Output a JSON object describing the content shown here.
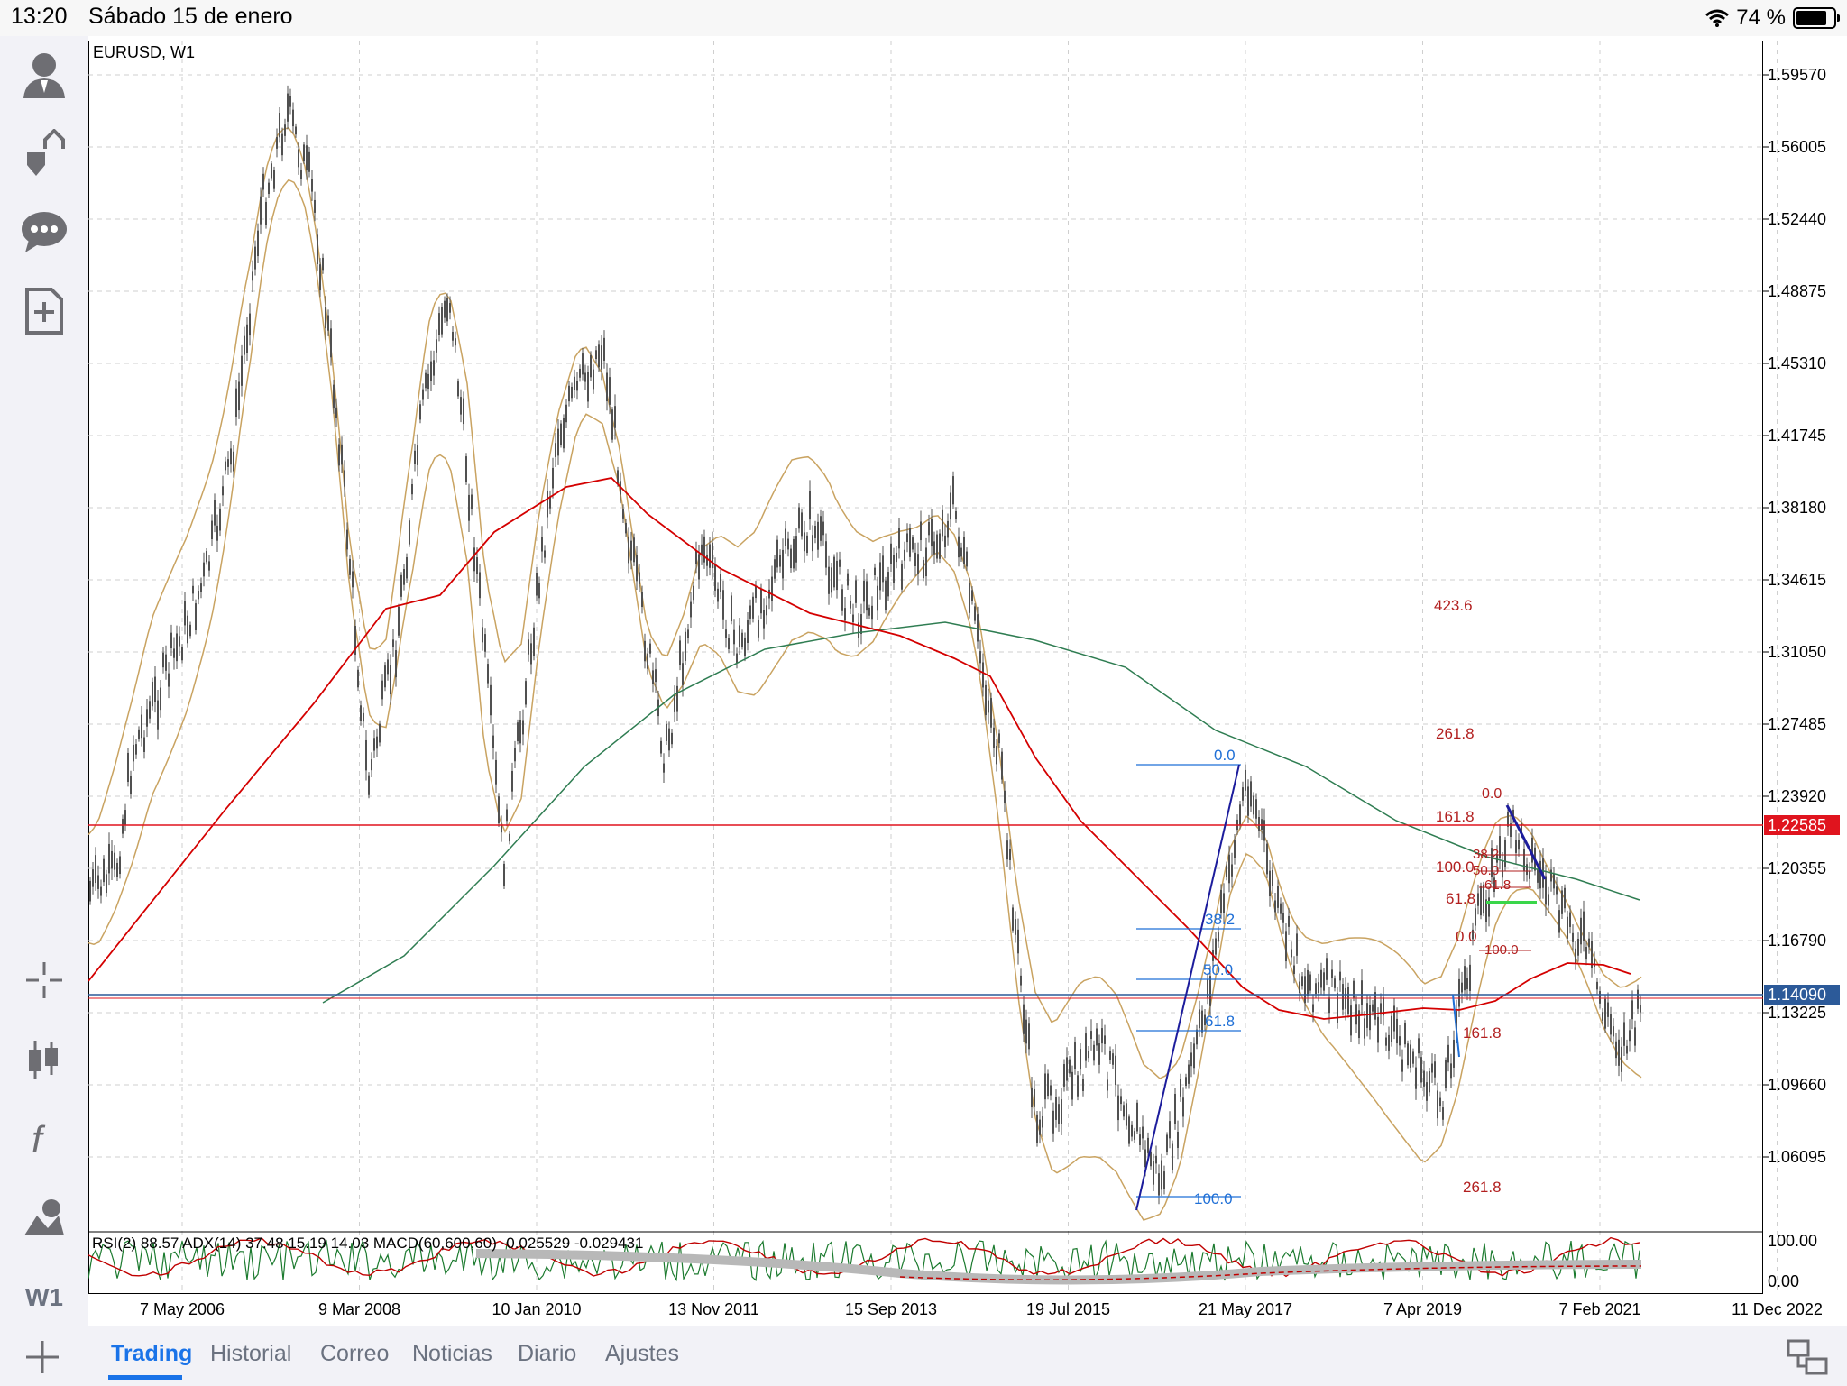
{
  "status_bar": {
    "time": "13:20",
    "date": "Sábado 15 de enero",
    "battery": "74 %"
  },
  "left_toolbar": {
    "icons": [
      "account-icon",
      "trade-arrows-icon",
      "chat-icon",
      "new-document-icon",
      "crosshair-icon",
      "chart-type-icon",
      "indicators-icon",
      "objects-icon"
    ],
    "timeframe": "W1"
  },
  "chart": {
    "symbol": "EURUSD, W1",
    "indicator_caption": "RSI(2) 88.57 ADX(14) 37.48 15.19 14.03 MACD(60,600,60) -0.025529 -0.029431",
    "price_ticks": [
      "1.59570",
      "1.56005",
      "1.52440",
      "1.48875",
      "1.45310",
      "1.41745",
      "1.38180",
      "1.34615",
      "1.31050",
      "1.27485",
      "1.23920",
      "1.20355",
      "1.16790",
      "1.13225",
      "1.09660",
      "1.06095"
    ],
    "price_marker_red": "1.22585",
    "price_marker_blue": "1.14090",
    "sub_ticks": [
      "100.00",
      "0.00"
    ],
    "date_ticks": [
      "7 May 2006",
      "9 Mar 2008",
      "10 Jan 2010",
      "13 Nov 2011",
      "15 Sep 2013",
      "19 Jul 2015",
      "21 May 2017",
      "7 Apr 2019",
      "7 Feb 2021",
      "11 Dec 2022"
    ],
    "fib_blue_levels": [
      "0.0",
      "38.2",
      "50.0",
      "61.8",
      "100.0"
    ],
    "fib_red_levels_main": [
      "423.6",
      "261.8",
      "161.8",
      "100.0",
      "61.8",
      "0.0",
      "161.8",
      "261.8"
    ],
    "fib_red_levels_small": [
      "0.0",
      "38.2",
      "50.0",
      "61.8",
      "100.0"
    ],
    "colors": {
      "candles": "#505050",
      "envelope": "#c9a361",
      "ma_red": "#d40000",
      "ma_green": "#2f7d52",
      "fib_blue": "#1f6fd6",
      "fib_red": "#b21f1f",
      "trend_line": "#1c1c9c",
      "marker_red_bg": "#e0141e",
      "marker_blue_bg": "#2c5a99"
    }
  },
  "bottom_tabs": [
    {
      "label": "Trading",
      "active": true
    },
    {
      "label": "Historial",
      "active": false
    },
    {
      "label": "Correo",
      "active": false
    },
    {
      "label": "Noticias",
      "active": false
    },
    {
      "label": "Diario",
      "active": false
    },
    {
      "label": "Ajustes",
      "active": false
    }
  ]
}
